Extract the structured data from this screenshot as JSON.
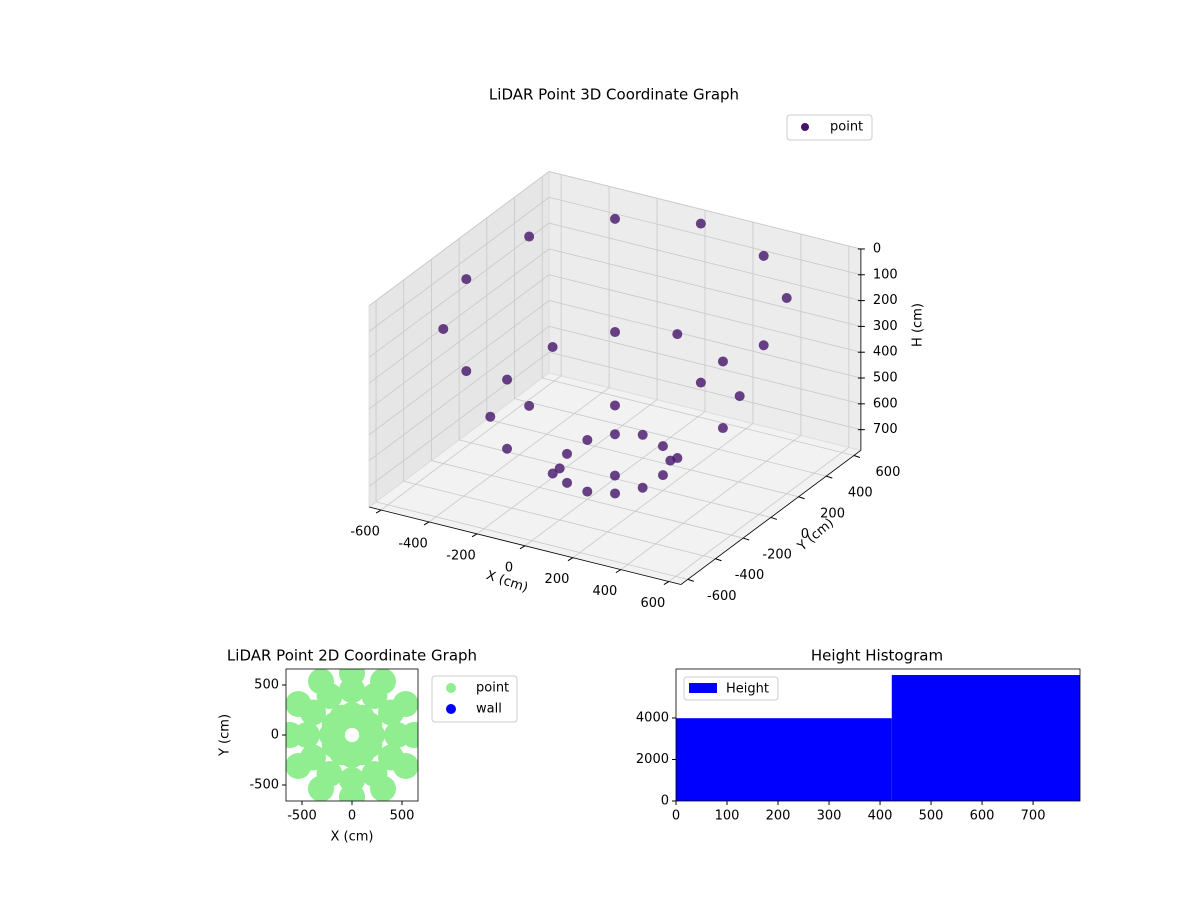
{
  "chart_data": [
    {
      "type": "scatter3d",
      "title": "LiDAR Point 3D Coordinate Graph",
      "xlabel": "X (cm)",
      "ylabel": "Y (cm)",
      "zlabel": "H (cm)",
      "xlim": [
        -650,
        650
      ],
      "ylim": [
        -650,
        650
      ],
      "zlim": [
        0,
        780
      ],
      "zinverted": true,
      "xticks": [
        -600,
        -400,
        -200,
        0,
        200,
        400,
        600
      ],
      "yticks": [
        -600,
        -400,
        -200,
        0,
        200,
        400,
        600
      ],
      "zticks": [
        0,
        100,
        200,
        300,
        400,
        500,
        600,
        700
      ],
      "grid": true,
      "legend": "upper right",
      "series": [
        {
          "name": "point",
          "color": "#45136a",
          "x": [
            620,
            537,
            310,
            0,
            -310,
            -537,
            -620,
            -537,
            -310,
            0,
            310,
            537,
            450,
            390,
            225,
            0,
            -225,
            -390,
            -450,
            -390,
            -225,
            0,
            225,
            390,
            200,
            173,
            100,
            0,
            -100,
            -173,
            -200,
            -173,
            -100,
            0,
            100,
            173
          ],
          "y": [
            0,
            310,
            537,
            620,
            537,
            310,
            0,
            -310,
            -537,
            -620,
            -537,
            -310,
            0,
            225,
            390,
            450,
            390,
            225,
            0,
            -225,
            -390,
            -450,
            -390,
            -225,
            0,
            100,
            173,
            200,
            173,
            100,
            0,
            -100,
            -173,
            -200,
            -173,
            -100
          ],
          "z": [
            120,
            80,
            60,
            40,
            60,
            90,
            150,
            200,
            220,
            250,
            210,
            160,
            480,
            460,
            430,
            400,
            420,
            450,
            500,
            540,
            560,
            580,
            560,
            520,
            720,
            710,
            700,
            690,
            700,
            710,
            730,
            740,
            750,
            750,
            745,
            735
          ]
        }
      ]
    },
    {
      "type": "scatter",
      "title": "LiDAR Point 2D Coordinate Graph",
      "xlabel": "X (cm)",
      "ylabel": "Y (cm)",
      "xlim": [
        -660,
        660
      ],
      "ylim": [
        -660,
        660
      ],
      "xticks": [
        -500,
        0,
        500
      ],
      "yticks": [
        -500,
        0,
        500
      ],
      "legend": "outside right",
      "series": [
        {
          "name": "point",
          "color": "#90ee90",
          "x": [
            620,
            537,
            310,
            0,
            -310,
            -537,
            -620,
            -537,
            -310,
            0,
            310,
            537,
            450,
            390,
            225,
            0,
            -225,
            -390,
            -450,
            -390,
            -225,
            0,
            225,
            390,
            200,
            173,
            100,
            0,
            -100,
            -173,
            -200,
            -173,
            -100,
            0,
            100,
            173
          ],
          "y": [
            0,
            310,
            537,
            620,
            537,
            310,
            0,
            -310,
            -537,
            -620,
            -537,
            -310,
            0,
            225,
            390,
            450,
            390,
            225,
            0,
            -225,
            -390,
            -450,
            -390,
            -225,
            0,
            100,
            173,
            200,
            173,
            100,
            0,
            -100,
            -173,
            -200,
            -173,
            -100
          ]
        },
        {
          "name": "wall",
          "color": "#0000ff",
          "x": [],
          "y": []
        }
      ]
    },
    {
      "type": "histogram",
      "title": "Height Histogram",
      "bins": [
        0,
        423,
        792
      ],
      "xlim": [
        0,
        792
      ],
      "ylim": [
        0,
        6360
      ],
      "xticks": [
        0,
        100,
        200,
        300,
        400,
        500,
        600,
        700
      ],
      "yticks": [
        0,
        2000,
        4000
      ],
      "legend": "upper left",
      "series": [
        {
          "name": "Height",
          "color": "#0000ff",
          "counts": [
            3990,
            6070
          ]
        }
      ]
    }
  ]
}
